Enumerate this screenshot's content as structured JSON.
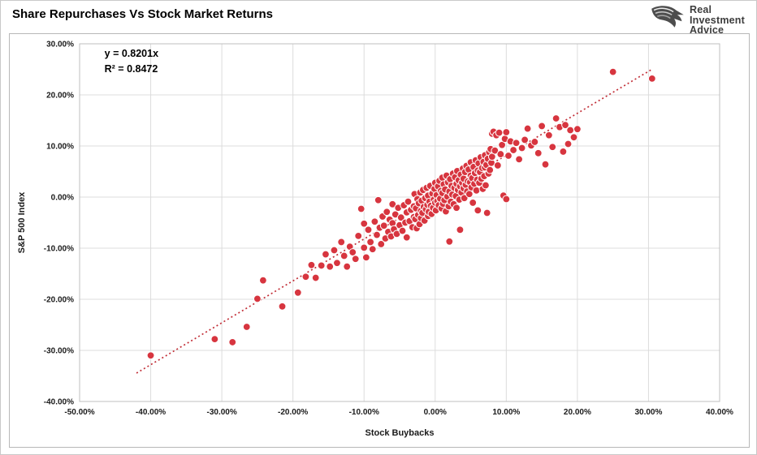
{
  "header": {
    "title": "Share Repurchases Vs Stock Market Returns",
    "logo": {
      "line1": "Real",
      "line2": "Investment",
      "line3": "Advice"
    }
  },
  "chart_data": {
    "type": "scatter",
    "title": "Share Repurchases Vs Stock Market Returns",
    "xlabel": "Stock Buybacks",
    "ylabel": "S&P 500 Index",
    "xlim": [
      -50,
      40
    ],
    "ylim": [
      -40,
      30
    ],
    "x_tick_step": 10,
    "y_tick_step": 10,
    "x_tick_labels": [
      "-50.00%",
      "-40.00%",
      "-30.00%",
      "-20.00%",
      "-10.00%",
      "0.00%",
      "10.00%",
      "20.00%",
      "30.00%",
      "40.00%"
    ],
    "y_tick_labels": [
      "30.00%",
      "20.00%",
      "10.00%",
      "0.00%",
      "-10.00%",
      "-20.00%",
      "-30.00%",
      "-40.00%"
    ],
    "grid": true,
    "legend": "none",
    "annotation": {
      "lines": [
        "y = 0.8201x",
        "R² = 0.8472"
      ]
    },
    "trendline": {
      "slope": 0.8201,
      "intercept": 0,
      "x_range": [
        -42,
        30.5
      ],
      "style": "dotted"
    },
    "colors": {
      "point": "#d7353f",
      "point_stroke": "#ffffff",
      "trend": "#c22f38",
      "grid": "#dcdcdc",
      "plot_border": "#bfbfbf",
      "text": "#1a1a1a"
    },
    "points": [
      [
        -40,
        -31
      ],
      [
        -31,
        -27.8
      ],
      [
        -28.5,
        -28.4
      ],
      [
        -26.5,
        -25.4
      ],
      [
        -25,
        -19.9
      ],
      [
        -24.2,
        -16.3
      ],
      [
        -21.5,
        -21.4
      ],
      [
        -19.3,
        -18.7
      ],
      [
        -18.2,
        -15.6
      ],
      [
        -17.4,
        -13.3
      ],
      [
        -16.8,
        -15.8
      ],
      [
        -16,
        -13.4
      ],
      [
        -15.4,
        -11.2
      ],
      [
        -14.8,
        -13.6
      ],
      [
        -14.2,
        -10.4
      ],
      [
        -13.8,
        -12.9
      ],
      [
        -13.2,
        -8.8
      ],
      [
        -12.8,
        -11.5
      ],
      [
        -12.4,
        -13.6
      ],
      [
        -12,
        -9.7
      ],
      [
        -11.6,
        -10.8
      ],
      [
        -11.2,
        -12.1
      ],
      [
        -10.8,
        -7.6
      ],
      [
        -10.4,
        -2.3
      ],
      [
        -10,
        -9.9
      ],
      [
        -10,
        -5.2
      ],
      [
        -9.7,
        -11.8
      ],
      [
        -9.4,
        -6.4
      ],
      [
        -9.1,
        -8.8
      ],
      [
        -8.8,
        -10.2
      ],
      [
        -8.5,
        -4.8
      ],
      [
        -8.2,
        -7.4
      ],
      [
        -8,
        -0.6
      ],
      [
        -7.8,
        -6
      ],
      [
        -7.6,
        -9.2
      ],
      [
        -7.4,
        -3.8
      ],
      [
        -7.2,
        -5.6
      ],
      [
        -7,
        -8.1
      ],
      [
        -6.8,
        -2.9
      ],
      [
        -6.6,
        -6.8
      ],
      [
        -6.4,
        -4.4
      ],
      [
        -6.2,
        -7.7
      ],
      [
        -6,
        -1.4
      ],
      [
        -6,
        -5.1
      ],
      [
        -5.8,
        -6.3
      ],
      [
        -5.6,
        -3.4
      ],
      [
        -5.4,
        -7.2
      ],
      [
        -5.2,
        -2.1
      ],
      [
        -5,
        -5.5
      ],
      [
        -4.8,
        -4
      ],
      [
        -4.6,
        -6.6
      ],
      [
        -4.4,
        -1.6
      ],
      [
        -4.2,
        -5
      ],
      [
        -4,
        -3
      ],
      [
        -4,
        -7.9
      ],
      [
        -3.8,
        -0.9
      ],
      [
        -3.6,
        -4.7
      ],
      [
        -3.4,
        -2.5
      ],
      [
        -3.2,
        -5.9
      ],
      [
        -3,
        -1.8
      ],
      [
        -3,
        -3.9
      ],
      [
        -2.9,
        0.6
      ],
      [
        -2.8,
        -4.3
      ],
      [
        -2.7,
        -2.2
      ],
      [
        -2.6,
        -6.1
      ],
      [
        -2.5,
        -0.4
      ],
      [
        -2.4,
        -3.5
      ],
      [
        -2.3,
        -1.2
      ],
      [
        -2.2,
        -5.3
      ],
      [
        -2.1,
        0.9
      ],
      [
        -2,
        -2.7
      ],
      [
        -2,
        -4.1
      ],
      [
        -1.9,
        -0.7
      ],
      [
        -1.8,
        -3.1
      ],
      [
        -1.7,
        1.4
      ],
      [
        -1.6,
        -1.9
      ],
      [
        -1.5,
        -4.6
      ],
      [
        -1.4,
        -0.2
      ],
      [
        -1.3,
        -2.4
      ],
      [
        -1.2,
        1.8
      ],
      [
        -1.1,
        -1.5
      ],
      [
        -1,
        -3.7
      ],
      [
        -1,
        0.3
      ],
      [
        -0.9,
        -2.9
      ],
      [
        -0.8,
        -0.9
      ],
      [
        -0.7,
        2.2
      ],
      [
        -0.6,
        -1.7
      ],
      [
        -0.5,
        -3.3
      ],
      [
        -0.4,
        0.7
      ],
      [
        -0.3,
        -2.1
      ],
      [
        -0.2,
        -0.5
      ],
      [
        -0.1,
        1.6
      ],
      [
        0,
        -1.1
      ],
      [
        0,
        2.8
      ],
      [
        0.1,
        -2.6
      ],
      [
        0.2,
        0.4
      ],
      [
        0.3,
        -0.8
      ],
      [
        0.4,
        2.1
      ],
      [
        0.5,
        -1.6
      ],
      [
        0.6,
        3.2
      ],
      [
        0.7,
        -0.3
      ],
      [
        0.8,
        1.2
      ],
      [
        0.9,
        -2.2
      ],
      [
        1,
        0.8
      ],
      [
        1,
        3.8
      ],
      [
        1.1,
        -1.3
      ],
      [
        1.2,
        2.5
      ],
      [
        1.3,
        -0.6
      ],
      [
        1.4,
        1.5
      ],
      [
        1.5,
        -2.8
      ],
      [
        1.6,
        4.2
      ],
      [
        1.7,
        0.1
      ],
      [
        1.8,
        2.9
      ],
      [
        1.9,
        -1.8
      ],
      [
        2,
        1.1
      ],
      [
        2,
        -8.7
      ],
      [
        2.1,
        3.5
      ],
      [
        2.2,
        -0.9
      ],
      [
        2.3,
        2.2
      ],
      [
        2.4,
        0.5
      ],
      [
        2.5,
        4.6
      ],
      [
        2.6,
        -1.4
      ],
      [
        2.7,
        1.8
      ],
      [
        2.8,
        3.9
      ],
      [
        2.9,
        0.2
      ],
      [
        3,
        2.6
      ],
      [
        3,
        -2.1
      ],
      [
        3.1,
        5.1
      ],
      [
        3.2,
        1.4
      ],
      [
        3.3,
        3.3
      ],
      [
        3.4,
        -0.5
      ],
      [
        3.5,
        2.1
      ],
      [
        3.5,
        -6.4
      ],
      [
        3.6,
        4.4
      ],
      [
        3.7,
        0.9
      ],
      [
        3.8,
        2.8
      ],
      [
        3.9,
        5.6
      ],
      [
        4,
        1.7
      ],
      [
        4,
        3.6
      ],
      [
        4.1,
        -0.2
      ],
      [
        4.2,
        4.9
      ],
      [
        4.3,
        2.4
      ],
      [
        4.4,
        6.1
      ],
      [
        4.5,
        1.1
      ],
      [
        4.6,
        3.1
      ],
      [
        4.7,
        5.4
      ],
      [
        4.8,
        0.6
      ],
      [
        4.9,
        2.9
      ],
      [
        5,
        4.2
      ],
      [
        5,
        6.8
      ],
      [
        5.1,
        1.9
      ],
      [
        5.2,
        3.7
      ],
      [
        5.3,
        -1.1
      ],
      [
        5.4,
        5.9
      ],
      [
        5.5,
        2.6
      ],
      [
        5.6,
        4.7
      ],
      [
        5.7,
        7.2
      ],
      [
        5.8,
        1.3
      ],
      [
        5.9,
        3.4
      ],
      [
        6,
        5.2
      ],
      [
        6,
        -2.6
      ],
      [
        6.1,
        6.6
      ],
      [
        6.2,
        2.8
      ],
      [
        6.3,
        4.9
      ],
      [
        6.4,
        7.8
      ],
      [
        6.5,
        3.6
      ],
      [
        6.6,
        5.7
      ],
      [
        6.7,
        1.6
      ],
      [
        6.8,
        6.9
      ],
      [
        6.9,
        4.1
      ],
      [
        7,
        5.8
      ],
      [
        7,
        8.2
      ],
      [
        7.1,
        2.3
      ],
      [
        7.2,
        6.3
      ],
      [
        7.3,
        -3.1
      ],
      [
        7.4,
        7.5
      ],
      [
        7.5,
        4.6
      ],
      [
        7.6,
        8.8
      ],
      [
        7.7,
        5.3
      ],
      [
        7.8,
        9.4
      ],
      [
        7.9,
        6.7
      ],
      [
        8,
        12.4
      ],
      [
        8,
        7.9
      ],
      [
        8.2,
        12.8
      ],
      [
        8.4,
        9.1
      ],
      [
        8.6,
        12.1
      ],
      [
        8.8,
        6.2
      ],
      [
        9,
        12.6
      ],
      [
        9.2,
        8.4
      ],
      [
        9.4,
        10.2
      ],
      [
        9.6,
        0.3
      ],
      [
        9.8,
        11.4
      ],
      [
        10,
        12.7
      ],
      [
        10,
        -0.4
      ],
      [
        10.3,
        8.1
      ],
      [
        10.6,
        10.9
      ],
      [
        11,
        9.2
      ],
      [
        11.4,
        10.6
      ],
      [
        11.8,
        7.4
      ],
      [
        12.2,
        9.6
      ],
      [
        12.6,
        11.2
      ],
      [
        13,
        13.4
      ],
      [
        13.5,
        10.1
      ],
      [
        14,
        10.8
      ],
      [
        14.5,
        8.6
      ],
      [
        15,
        13.9
      ],
      [
        15.5,
        6.4
      ],
      [
        16,
        12.1
      ],
      [
        16.5,
        9.8
      ],
      [
        17,
        15.4
      ],
      [
        17.5,
        13.7
      ],
      [
        18,
        8.9
      ],
      [
        18.3,
        14.1
      ],
      [
        18.7,
        10.4
      ],
      [
        19,
        13.1
      ],
      [
        19.5,
        11.7
      ],
      [
        20,
        13.3
      ],
      [
        25,
        24.5
      ],
      [
        30.5,
        23.2
      ]
    ]
  }
}
